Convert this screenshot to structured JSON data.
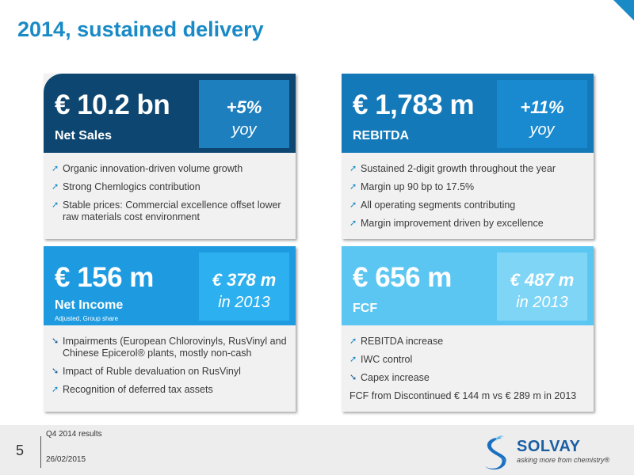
{
  "title": "2014, sustained delivery",
  "cards": [
    {
      "big": "€ 10.2 bn",
      "label": "Net Sales",
      "sublabel": "",
      "badge_top": "+5%",
      "badge_bottom": "yoy",
      "items": [
        {
          "dir": "up",
          "text": "Organic innovation-driven volume growth"
        },
        {
          "dir": "up",
          "text": "Strong Chemlogics contribution"
        },
        {
          "dir": "up",
          "text": "Stable prices: Commercial excellence offset lower raw materials cost environment"
        }
      ]
    },
    {
      "big": "€ 1,783 m",
      "label": "REBITDA",
      "sublabel": "",
      "badge_top": "+11%",
      "badge_bottom": "yoy",
      "items": [
        {
          "dir": "up",
          "text": "Sustained 2-digit growth throughout the year"
        },
        {
          "dir": "up",
          "text": "Margin up 90 bp to 17.5%"
        },
        {
          "dir": "up",
          "text": "All operating segments contributing"
        },
        {
          "dir": "up",
          "text": "Margin improvement driven by excellence"
        }
      ]
    },
    {
      "big": "€ 156 m",
      "label": "Net Income",
      "sublabel": "Adjusted, Group share",
      "badge_top": "€ 378 m",
      "badge_bottom": "in 2013",
      "items": [
        {
          "dir": "down",
          "text": "Impairments (European Chlorovinyls, RusVinyl and Chinese Epicerol® plants, mostly non-cash"
        },
        {
          "dir": "down",
          "text": "Impact of Ruble devaluation on RusVinyl"
        },
        {
          "dir": "up",
          "text": "Recognition of deferred tax assets"
        }
      ]
    },
    {
      "big": "€ 656 m",
      "label": "FCF",
      "sublabel": "",
      "badge_top": "€ 487 m",
      "badge_bottom": "in 2013",
      "items": [
        {
          "dir": "up",
          "text": "REBITDA increase"
        },
        {
          "dir": "up",
          "text": "IWC control"
        },
        {
          "dir": "down",
          "text": "Capex increase"
        }
      ],
      "note": "FCF from Discontinued € 144 m vs € 289 m in 2013"
    }
  ],
  "footer": {
    "page_number": "5",
    "report": "Q4 2014 results",
    "date": "26/02/2015"
  },
  "logo": {
    "name": "SOLVAY",
    "tagline": "asking more from chemistry®"
  },
  "colors": {
    "accent": "#1a8ac6",
    "card1": "#0d4771",
    "card2": "#1479b8",
    "card3": "#1e9be0",
    "card4": "#5bc6f1"
  }
}
